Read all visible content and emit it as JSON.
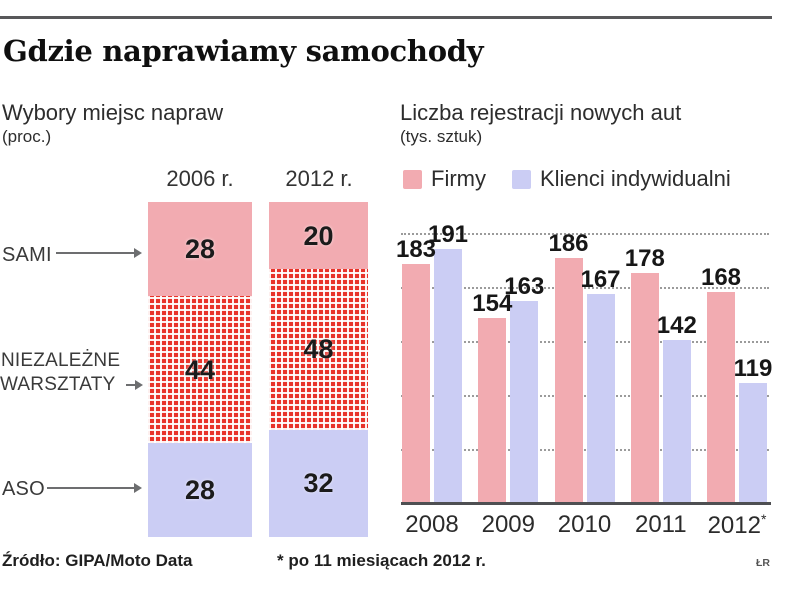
{
  "title": "Gdzie naprawiamy samochody",
  "row_labels": {
    "sami": "SAMI",
    "niezalezne": "NIEZALEŻNE",
    "warsztaty": "WARSZTATY",
    "aso": "ASO"
  },
  "footer": {
    "source": "Źródło: GIPA/Moto Data",
    "footnote": "* po 11 miesiącach 2012 r.",
    "credit": "ŁR"
  },
  "colors": {
    "firmy_pink": "#f2abb1",
    "klienci_lavender": "#cbcdf4",
    "pattern_red": "#e8332a",
    "rule_gray": "#58585a"
  },
  "chart_data": [
    {
      "type": "bar",
      "variant": "stacked-percent",
      "title": "Wybory miejsc napraw",
      "subtitle": "(proc.)",
      "categories": [
        "2006 r.",
        "2012 r."
      ],
      "segments": [
        "SAMI",
        "NIEZALEŻNE WARSZTATY",
        "ASO"
      ],
      "series": [
        {
          "name": "2006 r.",
          "values": [
            28,
            44,
            28
          ]
        },
        {
          "name": "2012 r.",
          "values": [
            20,
            48,
            32
          ]
        }
      ],
      "unit": "proc.",
      "total": 100,
      "grid": "off"
    },
    {
      "type": "bar",
      "variant": "grouped",
      "title": "Liczba rejestracji nowych aut",
      "subtitle": "(tys. sztuk)",
      "categories": [
        "2008",
        "2009",
        "2010",
        "2011",
        "2012*"
      ],
      "series": [
        {
          "name": "Firmy",
          "values": [
            183,
            154,
            186,
            178,
            168
          ]
        },
        {
          "name": "Klienci indywidualni",
          "values": [
            191,
            163,
            167,
            142,
            119
          ]
        }
      ],
      "unit": "tys. sztuk",
      "legend_position": "top",
      "grid": "dotted-horizontal",
      "ylim": [
        55,
        200
      ]
    }
  ]
}
